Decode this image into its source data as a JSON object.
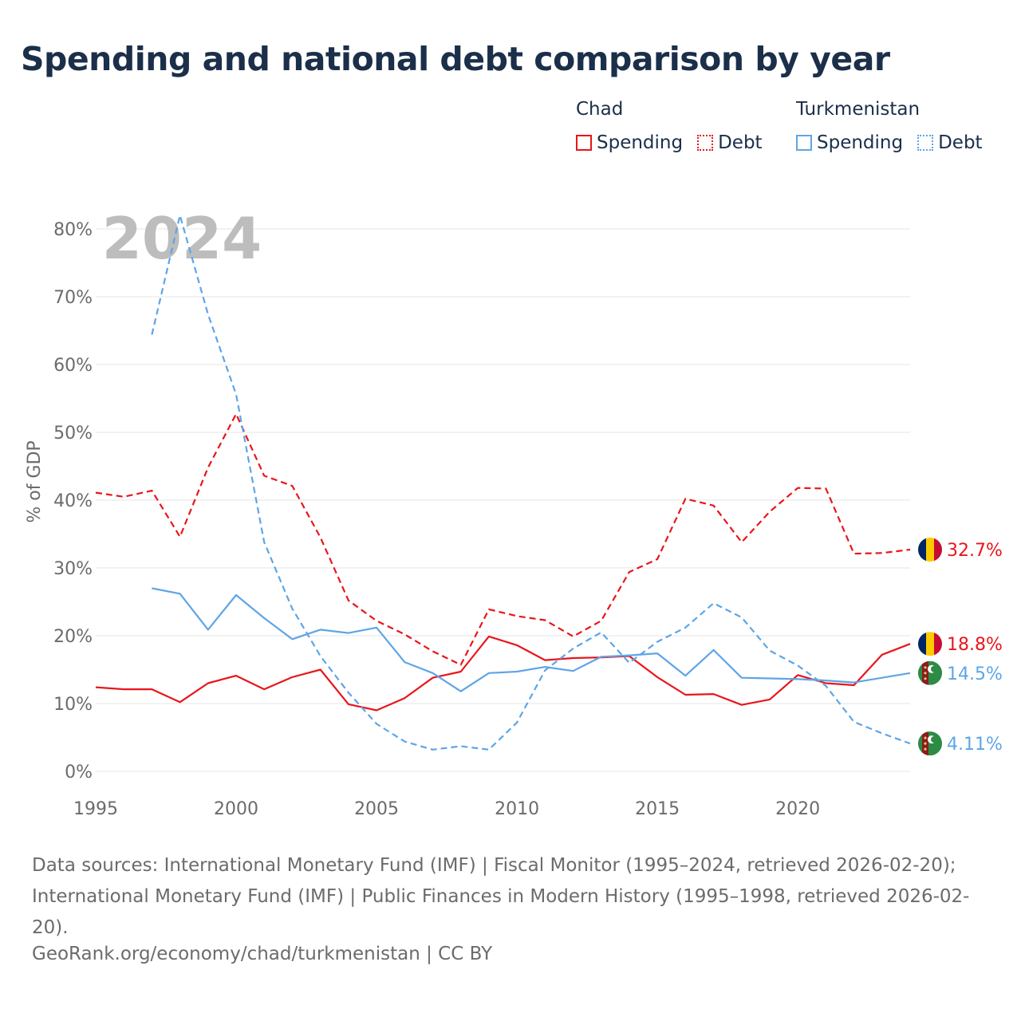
{
  "title": "Spending and national debt comparison by year",
  "legend": {
    "groups": [
      {
        "name": "Chad",
        "color": "#e8161b",
        "items": [
          {
            "label": "Spending",
            "style": "solid"
          },
          {
            "label": "Debt",
            "style": "dotted"
          }
        ]
      },
      {
        "name": "Turkmenistan",
        "color": "#5ea5e6",
        "items": [
          {
            "label": "Spending",
            "style": "solid"
          },
          {
            "label": "Debt",
            "style": "dotted"
          }
        ]
      }
    ]
  },
  "source_text": "Data sources: International Monetary Fund (IMF) | Fiscal Monitor (1995–2024, retrieved 2026-02-20); International Monetary Fund (IMF) | Public Finances in Modern History (1995–1998, retrieved 2026-02-20).",
  "attribution": "GeoRank.org/economy/chad/turkmenistan | CC BY",
  "chart_data": {
    "type": "line",
    "year_watermark": "2024",
    "ylabel": "% of GDP",
    "xlabel": "",
    "xlim": [
      1995,
      2024
    ],
    "ylim": [
      0,
      80
    ],
    "x_ticks": [
      1995,
      2000,
      2005,
      2010,
      2015,
      2020
    ],
    "y_ticks": [
      0,
      10,
      20,
      30,
      40,
      50,
      60,
      70,
      80
    ],
    "y_tick_labels": [
      "0%",
      "10%",
      "20%",
      "30%",
      "40%",
      "50%",
      "60%",
      "70%",
      "80%"
    ],
    "grid": "horizontal",
    "series": [
      {
        "name": "Chad Spending",
        "country": "Chad",
        "measure": "Spending",
        "dash": "solid",
        "color": "#e8161b",
        "end_label": "18.8%",
        "x": [
          1995,
          1996,
          1997,
          1998,
          1999,
          2000,
          2001,
          2002,
          2003,
          2004,
          2005,
          2006,
          2007,
          2008,
          2009,
          2010,
          2011,
          2012,
          2013,
          2014,
          2015,
          2016,
          2017,
          2018,
          2019,
          2020,
          2021,
          2022,
          2023,
          2024
        ],
        "y": [
          12.4,
          12.1,
          12.1,
          10.2,
          13.0,
          14.1,
          12.1,
          13.9,
          15.0,
          9.9,
          9.0,
          10.8,
          13.8,
          14.7,
          19.9,
          18.6,
          16.4,
          16.7,
          16.8,
          17.0,
          13.9,
          11.3,
          11.4,
          9.8,
          10.6,
          14.2,
          13.0,
          12.7,
          17.2,
          18.8
        ]
      },
      {
        "name": "Chad Debt",
        "country": "Chad",
        "measure": "Debt",
        "dash": "dashed",
        "color": "#e8161b",
        "end_label": "32.7%",
        "x": [
          1995,
          1996,
          1997,
          1998,
          1999,
          2000,
          2001,
          2002,
          2003,
          2004,
          2005,
          2006,
          2007,
          2008,
          2009,
          2010,
          2011,
          2012,
          2013,
          2014,
          2015,
          2016,
          2017,
          2018,
          2019,
          2020,
          2021,
          2022,
          2023,
          2024
        ],
        "y": [
          41.1,
          40.5,
          41.4,
          34.6,
          44.8,
          52.7,
          43.6,
          42.1,
          34.5,
          25.2,
          22.2,
          20.2,
          17.7,
          15.7,
          23.9,
          22.9,
          22.3,
          19.9,
          22.2,
          29.4,
          31.3,
          40.2,
          39.2,
          33.8,
          38.3,
          41.8,
          41.7,
          32.1,
          32.2,
          32.7
        ]
      },
      {
        "name": "Turkmenistan Spending",
        "country": "Turkmenistan",
        "measure": "Spending",
        "dash": "solid",
        "color": "#5ea5e6",
        "end_label": "14.5%",
        "x": [
          1997,
          1998,
          1999,
          2000,
          2001,
          2002,
          2003,
          2004,
          2005,
          2006,
          2007,
          2008,
          2009,
          2010,
          2011,
          2012,
          2013,
          2014,
          2015,
          2016,
          2017,
          2018,
          2019,
          2020,
          2021,
          2022,
          2023,
          2024
        ],
        "y": [
          27.0,
          26.2,
          20.9,
          26.0,
          22.6,
          19.5,
          20.9,
          20.4,
          21.2,
          16.1,
          14.5,
          11.8,
          14.5,
          14.7,
          15.4,
          14.8,
          16.9,
          17.1,
          17.4,
          14.1,
          17.9,
          13.8,
          13.7,
          13.6,
          13.4,
          13.1,
          13.8,
          14.5
        ]
      },
      {
        "name": "Turkmenistan Debt",
        "country": "Turkmenistan",
        "measure": "Debt",
        "dash": "dashed",
        "color": "#5ea5e6",
        "end_label": "4.11%",
        "x": [
          1997,
          1998,
          1999,
          2000,
          2001,
          2002,
          2003,
          2004,
          2005,
          2006,
          2007,
          2008,
          2009,
          2010,
          2011,
          2012,
          2013,
          2014,
          2015,
          2016,
          2017,
          2018,
          2019,
          2020,
          2021,
          2022,
          2023,
          2024
        ],
        "y": [
          64.4,
          82.0,
          67.4,
          55.6,
          33.8,
          24.0,
          17.0,
          11.6,
          7.0,
          4.4,
          3.2,
          3.7,
          3.2,
          7.2,
          14.9,
          18.1,
          20.5,
          16.0,
          19.1,
          21.2,
          24.8,
          22.7,
          17.8,
          15.6,
          12.6,
          7.3,
          5.6,
          4.11
        ]
      }
    ]
  }
}
